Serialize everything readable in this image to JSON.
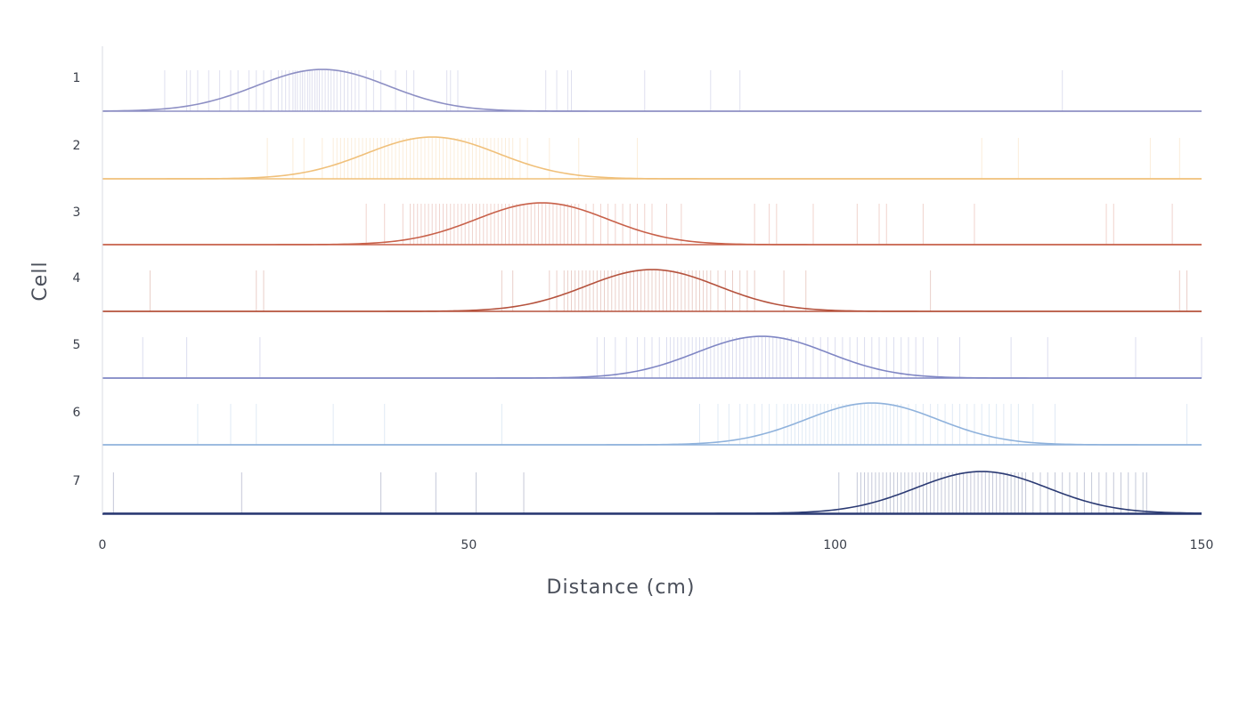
{
  "chart_data": {
    "type": "line",
    "xlabel": "Distance (cm)",
    "ylabel": "Cell",
    "xlim": [
      0,
      150
    ],
    "x_ticks": [
      "0",
      "50",
      "100",
      "150"
    ],
    "grid": false,
    "series": [
      {
        "name": "1",
        "color": "#8d8fc4",
        "peak_x": 30,
        "width": 9,
        "spikes": [
          8.5,
          11.5,
          12,
          13,
          14.5,
          16,
          17.5,
          18.5,
          20,
          21,
          22,
          23,
          24,
          24.5,
          25,
          25.5,
          26,
          26.3,
          26.6,
          27,
          27.3,
          27.6,
          28,
          28.3,
          28.6,
          29,
          29.3,
          29.6,
          30,
          30.4,
          30.8,
          31.2,
          31.6,
          32,
          32.5,
          33,
          33.5,
          34,
          34.5,
          35,
          36,
          37,
          38,
          40,
          41.5,
          42.5,
          47,
          47.5,
          48.5,
          60.5,
          62,
          63.5,
          64,
          74,
          83,
          87,
          131
        ]
      },
      {
        "name": "2",
        "color": "#f0c07a",
        "peak_x": 45,
        "width": 9,
        "spikes": [
          22.5,
          26,
          27.5,
          30,
          31.5,
          32,
          32.5,
          33,
          33.5,
          34,
          34.5,
          35,
          35.5,
          36,
          36.5,
          37,
          37.5,
          38,
          38.5,
          39,
          39.5,
          40,
          40.5,
          41,
          41.5,
          42,
          42.5,
          43,
          43.5,
          44,
          44.5,
          45,
          45.5,
          46,
          46.5,
          47,
          47.5,
          48,
          48.5,
          49,
          49.5,
          50,
          50.5,
          51,
          51.5,
          52,
          52.5,
          53,
          53.5,
          54,
          54.5,
          55,
          55.5,
          56,
          57,
          58,
          61,
          65,
          73,
          120,
          125,
          143,
          147
        ]
      },
      {
        "name": "3",
        "color": "#c8614a",
        "peak_x": 60,
        "width": 9,
        "spikes": [
          36,
          38.5,
          41,
          42,
          42.5,
          43,
          43.5,
          44,
          44.5,
          45,
          45.5,
          46,
          46.5,
          47,
          47.5,
          48,
          48.5,
          49,
          49.5,
          50,
          50.5,
          51,
          51.5,
          52,
          52.5,
          53,
          53.5,
          54,
          54.5,
          55,
          55.5,
          56,
          56.5,
          57,
          57.5,
          58,
          58.5,
          59,
          59.5,
          60,
          60.5,
          61,
          61.5,
          62,
          62.5,
          63,
          63.5,
          64,
          64.5,
          65,
          66,
          67,
          68,
          69,
          70,
          71,
          72,
          73,
          74,
          75,
          77,
          79,
          89,
          91,
          92,
          97,
          103,
          106,
          107,
          112,
          119,
          137,
          138,
          146
        ]
      },
      {
        "name": "4",
        "color": "#b5523d",
        "peak_x": 75,
        "width": 9,
        "spikes": [
          6.5,
          21,
          22,
          54.5,
          56,
          61,
          62,
          63,
          63.5,
          64,
          64.5,
          65,
          65.5,
          66,
          66.5,
          67,
          67.5,
          68,
          68.5,
          69,
          69.5,
          70,
          70.5,
          71,
          71.5,
          72,
          72.5,
          73,
          73.5,
          74,
          74.5,
          75,
          75.5,
          76,
          76.5,
          77,
          77.5,
          78,
          78.5,
          79,
          79.5,
          80,
          80.5,
          81,
          81.5,
          82,
          82.5,
          83,
          84,
          85,
          86,
          87,
          88,
          89,
          93,
          96,
          113,
          147,
          148
        ]
      },
      {
        "name": "5",
        "color": "#7f86c4",
        "peak_x": 90,
        "width": 9,
        "spikes": [
          5.5,
          11.5,
          21.5,
          67.5,
          68.5,
          70,
          71.5,
          73,
          74,
          75,
          76,
          77,
          77.5,
          78,
          78.5,
          79,
          79.5,
          80,
          80.5,
          81,
          81.5,
          82,
          82.5,
          83,
          83.5,
          84,
          84.5,
          85,
          85.5,
          86,
          86.5,
          87,
          87.5,
          88,
          88.5,
          89,
          89.5,
          90,
          90.5,
          91,
          91.5,
          92,
          92.5,
          93,
          93.5,
          94,
          95,
          96,
          97,
          98,
          99,
          100,
          101,
          102,
          103,
          104,
          105,
          106,
          107,
          108,
          109,
          110,
          111,
          112,
          114,
          117,
          124,
          129,
          141,
          150
        ]
      },
      {
        "name": "6",
        "color": "#8fb2dc",
        "peak_x": 105,
        "width": 9,
        "spikes": [
          13,
          17.5,
          21,
          31.5,
          38.5,
          54.5,
          81.5,
          84,
          85.5,
          87,
          88,
          89,
          90,
          91,
          92,
          93,
          93.5,
          94,
          94.5,
          95,
          95.5,
          96,
          96.5,
          97,
          97.5,
          98,
          98.5,
          99,
          99.5,
          100,
          100.5,
          101,
          101.5,
          102,
          102.5,
          103,
          103.5,
          104,
          104.5,
          105,
          105.5,
          106,
          106.5,
          107,
          107.5,
          108,
          108.5,
          109,
          110,
          111,
          112,
          113,
          114,
          115,
          116,
          117,
          118,
          119,
          120,
          121,
          122,
          123,
          124,
          125,
          127,
          130,
          148
        ]
      },
      {
        "name": "7",
        "color": "#2b3a73",
        "peak_x": 120,
        "width": 9,
        "spikes": [
          1.5,
          19,
          38,
          45.5,
          51,
          57.5,
          100.5,
          103,
          103.5,
          104,
          104.5,
          105,
          105.5,
          106,
          106.5,
          107,
          107.5,
          108,
          108.5,
          109,
          109.5,
          110,
          110.5,
          111,
          111.5,
          112,
          112.5,
          113,
          113.5,
          114,
          114.5,
          115,
          115.5,
          116,
          116.5,
          117,
          117.5,
          118,
          118.5,
          119,
          119.5,
          120,
          120.5,
          121,
          121.5,
          122,
          122.5,
          123,
          123.5,
          124,
          124.5,
          125,
          125.5,
          126,
          127,
          128,
          129,
          130,
          131,
          132,
          133,
          134,
          135,
          136,
          137,
          138,
          139,
          140,
          141,
          142,
          142.5
        ]
      }
    ]
  }
}
